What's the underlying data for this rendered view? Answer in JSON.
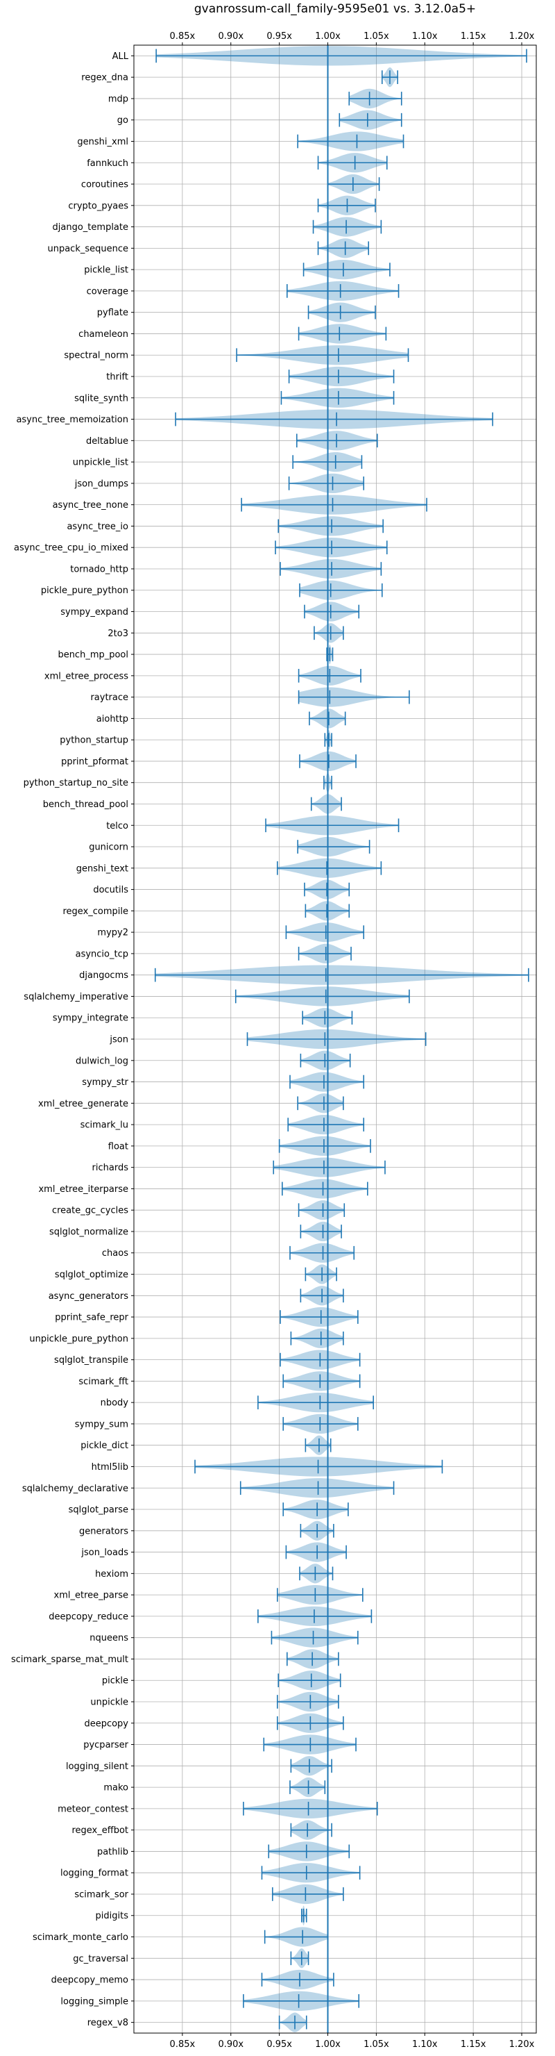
{
  "chart_data": {
    "type": "violin",
    "title": "gvanrossum-call_family-9595e01 vs. 3.12.0a5+",
    "xlabel": "",
    "ylabel": "",
    "x_ticks": [
      "0.85x",
      "0.90x",
      "0.95x",
      "1.00x",
      "1.05x",
      "1.10x",
      "1.15x",
      "1.20x"
    ],
    "x_tick_values": [
      0.85,
      0.9,
      0.95,
      1.0,
      1.05,
      1.1,
      1.15,
      1.2
    ],
    "xlim": [
      0.8,
      1.215
    ],
    "reference_line": 1.0,
    "grid": true,
    "color": "#1f77b4",
    "fill_color": "#1f77b4",
    "benchmarks": [
      {
        "name": "ALL",
        "mean": 1.0,
        "min": 0.823,
        "max": 1.205
      },
      {
        "name": "regex_dna",
        "mean": 1.064,
        "min": 1.056,
        "max": 1.072
      },
      {
        "name": "mdp",
        "mean": 1.043,
        "min": 1.022,
        "max": 1.076
      },
      {
        "name": "go",
        "mean": 1.041,
        "min": 1.012,
        "max": 1.076
      },
      {
        "name": "genshi_xml",
        "mean": 1.03,
        "min": 0.969,
        "max": 1.078
      },
      {
        "name": "fannkuch",
        "mean": 1.028,
        "min": 0.99,
        "max": 1.061
      },
      {
        "name": "coroutines",
        "mean": 1.026,
        "min": 1.0,
        "max": 1.053
      },
      {
        "name": "crypto_pyaes",
        "mean": 1.02,
        "min": 0.99,
        "max": 1.049
      },
      {
        "name": "django_template",
        "mean": 1.019,
        "min": 0.985,
        "max": 1.055
      },
      {
        "name": "unpack_sequence",
        "mean": 1.018,
        "min": 0.99,
        "max": 1.042
      },
      {
        "name": "pickle_list",
        "mean": 1.016,
        "min": 0.975,
        "max": 1.064
      },
      {
        "name": "coverage",
        "mean": 1.013,
        "min": 0.958,
        "max": 1.073
      },
      {
        "name": "pyflate",
        "mean": 1.013,
        "min": 0.98,
        "max": 1.049
      },
      {
        "name": "chameleon",
        "mean": 1.012,
        "min": 0.97,
        "max": 1.06
      },
      {
        "name": "spectral_norm",
        "mean": 1.011,
        "min": 0.906,
        "max": 1.083
      },
      {
        "name": "thrift",
        "mean": 1.011,
        "min": 0.96,
        "max": 1.068
      },
      {
        "name": "sqlite_synth",
        "mean": 1.011,
        "min": 0.952,
        "max": 1.068
      },
      {
        "name": "async_tree_memoization",
        "mean": 1.009,
        "min": 0.843,
        "max": 1.17
      },
      {
        "name": "deltablue",
        "mean": 1.009,
        "min": 0.968,
        "max": 1.051
      },
      {
        "name": "unpickle_list",
        "mean": 1.008,
        "min": 0.964,
        "max": 1.035
      },
      {
        "name": "json_dumps",
        "mean": 1.005,
        "min": 0.96,
        "max": 1.037
      },
      {
        "name": "async_tree_none",
        "mean": 1.005,
        "min": 0.911,
        "max": 1.102
      },
      {
        "name": "async_tree_io",
        "mean": 1.004,
        "min": 0.949,
        "max": 1.057
      },
      {
        "name": "async_tree_cpu_io_mixed",
        "mean": 1.004,
        "min": 0.946,
        "max": 1.061
      },
      {
        "name": "tornado_http",
        "mean": 1.004,
        "min": 0.951,
        "max": 1.055
      },
      {
        "name": "pickle_pure_python",
        "mean": 1.003,
        "min": 0.971,
        "max": 1.056
      },
      {
        "name": "sympy_expand",
        "mean": 1.003,
        "min": 0.976,
        "max": 1.032
      },
      {
        "name": "2to3",
        "mean": 1.003,
        "min": 0.986,
        "max": 1.016
      },
      {
        "name": "bench_mp_pool",
        "mean": 1.002,
        "min": 0.999,
        "max": 1.005
      },
      {
        "name": "xml_etree_process",
        "mean": 1.002,
        "min": 0.97,
        "max": 1.034
      },
      {
        "name": "raytrace",
        "mean": 1.002,
        "min": 0.97,
        "max": 1.084
      },
      {
        "name": "aiohttp",
        "mean": 1.001,
        "min": 0.981,
        "max": 1.018
      },
      {
        "name": "python_startup",
        "mean": 1.001,
        "min": 0.997,
        "max": 1.004
      },
      {
        "name": "pprint_pformat",
        "mean": 1.001,
        "min": 0.971,
        "max": 1.029
      },
      {
        "name": "python_startup_no_site",
        "mean": 1.0,
        "min": 0.996,
        "max": 1.004
      },
      {
        "name": "bench_thread_pool",
        "mean": 1.0,
        "min": 0.983,
        "max": 1.014
      },
      {
        "name": "telco",
        "mean": 1.0,
        "min": 0.936,
        "max": 1.073
      },
      {
        "name": "gunicorn",
        "mean": 1.0,
        "min": 0.969,
        "max": 1.043
      },
      {
        "name": "genshi_text",
        "mean": 0.999,
        "min": 0.948,
        "max": 1.055
      },
      {
        "name": "docutils",
        "mean": 0.999,
        "min": 0.976,
        "max": 1.022
      },
      {
        "name": "regex_compile",
        "mean": 0.999,
        "min": 0.977,
        "max": 1.022
      },
      {
        "name": "mypy2",
        "mean": 0.998,
        "min": 0.957,
        "max": 1.037
      },
      {
        "name": "asyncio_tcp",
        "mean": 0.998,
        "min": 0.97,
        "max": 1.024
      },
      {
        "name": "djangocms",
        "mean": 0.998,
        "min": 0.822,
        "max": 1.207
      },
      {
        "name": "sqlalchemy_imperative",
        "mean": 0.998,
        "min": 0.905,
        "max": 1.084
      },
      {
        "name": "sympy_integrate",
        "mean": 0.997,
        "min": 0.974,
        "max": 1.025
      },
      {
        "name": "json",
        "mean": 0.997,
        "min": 0.917,
        "max": 1.101
      },
      {
        "name": "dulwich_log",
        "mean": 0.997,
        "min": 0.972,
        "max": 1.023
      },
      {
        "name": "sympy_str",
        "mean": 0.996,
        "min": 0.961,
        "max": 1.037
      },
      {
        "name": "xml_etree_generate",
        "mean": 0.996,
        "min": 0.969,
        "max": 1.016
      },
      {
        "name": "scimark_lu",
        "mean": 0.996,
        "min": 0.959,
        "max": 1.037
      },
      {
        "name": "float",
        "mean": 0.996,
        "min": 0.95,
        "max": 1.044
      },
      {
        "name": "richards",
        "mean": 0.996,
        "min": 0.944,
        "max": 1.059
      },
      {
        "name": "xml_etree_iterparse",
        "mean": 0.995,
        "min": 0.953,
        "max": 1.041
      },
      {
        "name": "create_gc_cycles",
        "mean": 0.995,
        "min": 0.97,
        "max": 1.017
      },
      {
        "name": "sqlglot_normalize",
        "mean": 0.995,
        "min": 0.972,
        "max": 1.014
      },
      {
        "name": "chaos",
        "mean": 0.995,
        "min": 0.961,
        "max": 1.027
      },
      {
        "name": "sqlglot_optimize",
        "mean": 0.994,
        "min": 0.977,
        "max": 1.009
      },
      {
        "name": "async_generators",
        "mean": 0.994,
        "min": 0.972,
        "max": 1.016
      },
      {
        "name": "pprint_safe_repr",
        "mean": 0.993,
        "min": 0.951,
        "max": 1.031
      },
      {
        "name": "unpickle_pure_python",
        "mean": 0.993,
        "min": 0.962,
        "max": 1.016
      },
      {
        "name": "sqlglot_transpile",
        "mean": 0.992,
        "min": 0.951,
        "max": 1.033
      },
      {
        "name": "scimark_fft",
        "mean": 0.992,
        "min": 0.954,
        "max": 1.033
      },
      {
        "name": "nbody",
        "mean": 0.992,
        "min": 0.928,
        "max": 1.047
      },
      {
        "name": "sympy_sum",
        "mean": 0.992,
        "min": 0.954,
        "max": 1.031
      },
      {
        "name": "pickle_dict",
        "mean": 0.991,
        "min": 0.977,
        "max": 1.003
      },
      {
        "name": "html5lib",
        "mean": 0.99,
        "min": 0.863,
        "max": 1.118
      },
      {
        "name": "sqlalchemy_declarative",
        "mean": 0.99,
        "min": 0.91,
        "max": 1.068
      },
      {
        "name": "sqlglot_parse",
        "mean": 0.989,
        "min": 0.954,
        "max": 1.021
      },
      {
        "name": "generators",
        "mean": 0.989,
        "min": 0.972,
        "max": 1.006
      },
      {
        "name": "json_loads",
        "mean": 0.989,
        "min": 0.957,
        "max": 1.019
      },
      {
        "name": "hexiom",
        "mean": 0.987,
        "min": 0.971,
        "max": 1.005
      },
      {
        "name": "xml_etree_parse",
        "mean": 0.987,
        "min": 0.948,
        "max": 1.036
      },
      {
        "name": "deepcopy_reduce",
        "mean": 0.986,
        "min": 0.928,
        "max": 1.045
      },
      {
        "name": "nqueens",
        "mean": 0.985,
        "min": 0.942,
        "max": 1.031
      },
      {
        "name": "scimark_sparse_mat_mult",
        "mean": 0.984,
        "min": 0.958,
        "max": 1.011
      },
      {
        "name": "pickle",
        "mean": 0.983,
        "min": 0.949,
        "max": 1.013
      },
      {
        "name": "unpickle",
        "mean": 0.982,
        "min": 0.948,
        "max": 1.011
      },
      {
        "name": "deepcopy",
        "mean": 0.982,
        "min": 0.948,
        "max": 1.016
      },
      {
        "name": "pycparser",
        "mean": 0.982,
        "min": 0.934,
        "max": 1.029
      },
      {
        "name": "logging_silent",
        "mean": 0.981,
        "min": 0.962,
        "max": 1.004
      },
      {
        "name": "mako",
        "mean": 0.98,
        "min": 0.961,
        "max": 0.997
      },
      {
        "name": "meteor_contest",
        "mean": 0.98,
        "min": 0.913,
        "max": 1.051
      },
      {
        "name": "regex_effbot",
        "mean": 0.979,
        "min": 0.962,
        "max": 1.004
      },
      {
        "name": "pathlib",
        "mean": 0.978,
        "min": 0.939,
        "max": 1.022
      },
      {
        "name": "logging_format",
        "mean": 0.978,
        "min": 0.932,
        "max": 1.033
      },
      {
        "name": "scimark_sor",
        "mean": 0.977,
        "min": 0.943,
        "max": 1.016
      },
      {
        "name": "pidigits",
        "mean": 0.975,
        "min": 0.973,
        "max": 0.978
      },
      {
        "name": "scimark_monte_carlo",
        "mean": 0.974,
        "min": 0.935,
        "max": 1.0
      },
      {
        "name": "gc_traversal",
        "mean": 0.973,
        "min": 0.962,
        "max": 0.98
      },
      {
        "name": "deepcopy_memo",
        "mean": 0.971,
        "min": 0.932,
        "max": 1.006
      },
      {
        "name": "logging_simple",
        "mean": 0.97,
        "min": 0.913,
        "max": 1.032
      },
      {
        "name": "regex_v8",
        "mean": 0.966,
        "min": 0.95,
        "max": 0.978
      }
    ]
  }
}
